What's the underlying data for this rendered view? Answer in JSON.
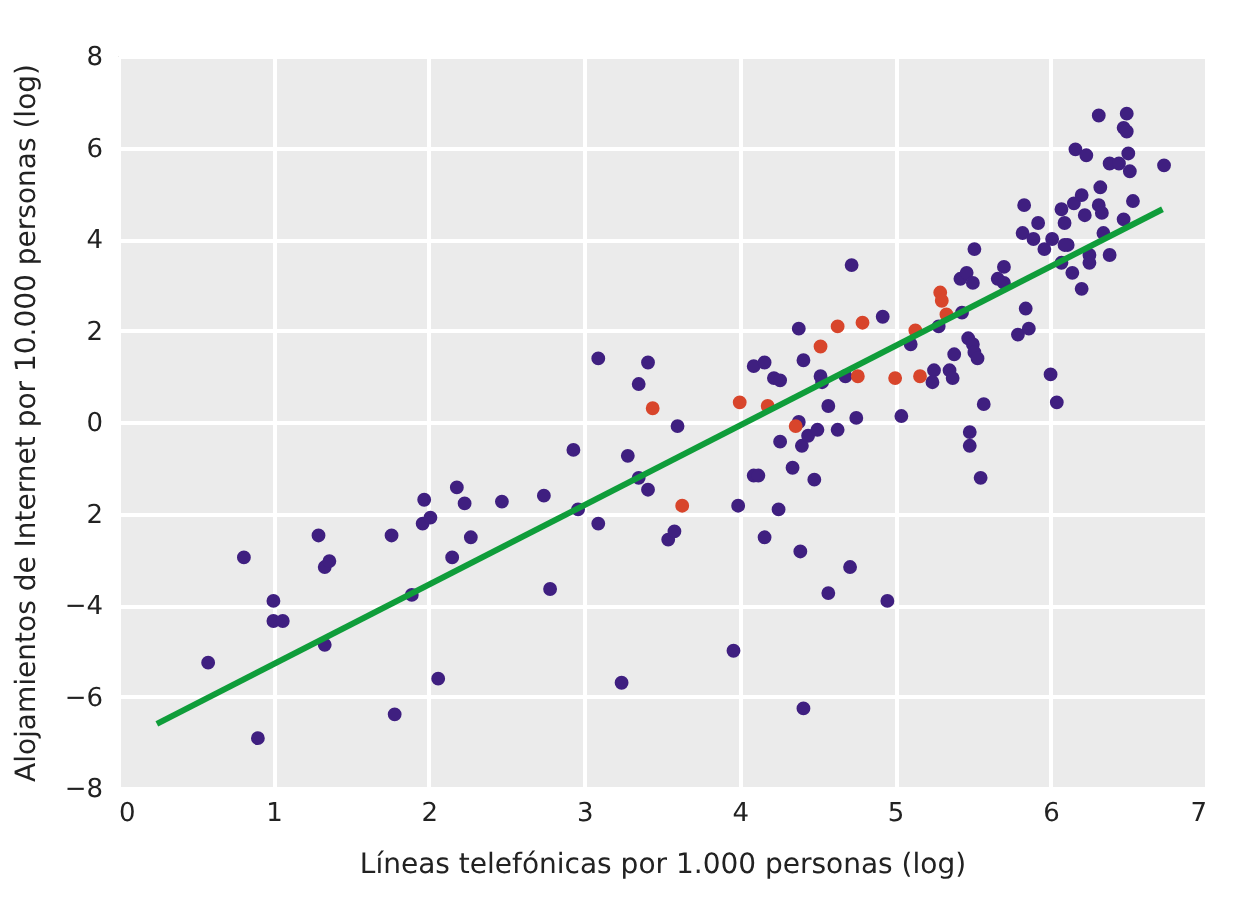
{
  "chart_data": {
    "type": "scatter",
    "xlabel": "Líneas telefónicas por 1.000 personas (log)",
    "ylabel": "Alojamientos de Internet por 10.000 personas (log)",
    "xlim": [
      0,
      7
    ],
    "ylim": [
      -8,
      8
    ],
    "xticks": [
      0,
      1,
      2,
      3,
      4,
      5,
      6,
      7
    ],
    "yticks": [
      8,
      6,
      4,
      2,
      0,
      {
        "value": -2,
        "label": "2"
      },
      -4,
      -6,
      -8
    ],
    "grid": true,
    "series": [
      {
        "color": "#3f1f80",
        "marker": "circle",
        "x": [
          0.58,
          0.81,
          0.9,
          1.0,
          1.0,
          1.06,
          1.29,
          1.33,
          1.36,
          1.33,
          1.76,
          1.78,
          1.89,
          1.96,
          1.97,
          2.01,
          2.06,
          2.15,
          2.18,
          2.23,
          2.27,
          2.47,
          2.74,
          2.78,
          2.93,
          2.96,
          3.09,
          3.09,
          3.24,
          3.28,
          3.35,
          3.41,
          3.41,
          3.35,
          3.54,
          3.58,
          3.6,
          3.96,
          3.99,
          4.09,
          4.16,
          4.22,
          4.09,
          4.12,
          4.16,
          4.25,
          4.26,
          4.34,
          4.4,
          4.44,
          4.5,
          4.63,
          4.75,
          4.38,
          4.48,
          4.39,
          4.71,
          4.57,
          4.95,
          4.41,
          4.38,
          4.53,
          4.57,
          4.68,
          4.72,
          4.41,
          4.52,
          4.26,
          4.92,
          5.1,
          5.04,
          5.28,
          5.25,
          5.24,
          5.35,
          5.37,
          5.38,
          5.43,
          5.47,
          5.5,
          5.51,
          5.53,
          5.57,
          5.48,
          5.48,
          5.55,
          5.51,
          5.42,
          5.46,
          5.5,
          5.66,
          5.7,
          5.7,
          5.79,
          5.84,
          5.86,
          6.0,
          6.04,
          5.82,
          5.89,
          5.92,
          5.96,
          6.01,
          6.07,
          6.11,
          6.14,
          6.2,
          6.25,
          6.25,
          6.34,
          6.38,
          6.31,
          6.49,
          6.47,
          6.49,
          6.16,
          6.23,
          6.38,
          6.44,
          6.5,
          6.51,
          6.73,
          5.83,
          6.07,
          6.09,
          6.15,
          6.2,
          6.22,
          6.31,
          6.32,
          6.33,
          6.53,
          6.47,
          6.09
        ],
        "values": [
          -5.26,
          -2.96,
          -6.91,
          -3.91,
          -4.35,
          -4.35,
          -2.48,
          -3.17,
          -3.04,
          -4.87,
          -2.48,
          -6.39,
          -3.78,
          -2.22,
          -1.7,
          -2.09,
          -5.61,
          -2.96,
          -1.43,
          -1.78,
          -2.52,
          -1.74,
          -1.61,
          -3.65,
          -0.61,
          -1.91,
          1.39,
          -2.22,
          -5.7,
          -0.74,
          0.83,
          1.3,
          -1.48,
          -1.22,
          -2.57,
          -2.39,
          -0.09,
          -5.0,
          -1.83,
          1.22,
          1.3,
          0.96,
          -1.17,
          -1.17,
          -2.52,
          -1.91,
          -0.43,
          -1.0,
          -0.52,
          -0.3,
          -0.17,
          -0.17,
          0.09,
          0.0,
          -1.26,
          -2.83,
          -3.17,
          -3.74,
          -3.91,
          -6.26,
          2.04,
          0.87,
          0.35,
          1.0,
          3.43,
          1.35,
          1.0,
          0.91,
          2.3,
          1.7,
          0.13,
          2.09,
          1.13,
          0.87,
          1.13,
          0.96,
          1.48,
          2.39,
          1.83,
          1.7,
          1.52,
          1.39,
          0.39,
          -0.22,
          -0.52,
          -1.22,
          3.78,
          3.13,
          3.26,
          3.04,
          3.13,
          3.39,
          3.04,
          1.91,
          2.48,
          2.04,
          1.04,
          0.43,
          4.13,
          4.0,
          4.35,
          3.78,
          4.0,
          3.48,
          3.87,
          3.26,
          2.91,
          3.65,
          3.48,
          4.13,
          3.65,
          6.7,
          6.74,
          6.43,
          6.35,
          5.96,
          5.83,
          5.65,
          5.65,
          5.87,
          5.48,
          5.61,
          4.74,
          4.65,
          4.35,
          4.78,
          4.96,
          4.52,
          4.74,
          5.13,
          4.57,
          4.83,
          4.43,
          3.87
        ]
      },
      {
        "color": "#d8452b",
        "marker": "circle",
        "x": [
          3.44,
          3.63,
          4.0,
          4.18,
          4.36,
          4.52,
          4.63,
          4.79,
          4.76,
          5.0,
          5.16,
          5.13,
          5.29,
          5.3,
          5.33
        ],
        "values": [
          0.3,
          -1.83,
          0.43,
          0.35,
          -0.09,
          1.65,
          2.09,
          2.17,
          1.0,
          0.96,
          1.0,
          2.0,
          2.83,
          2.65,
          2.35
        ]
      },
      {
        "type": "line",
        "color": "#0f9d3a",
        "x": [
          0.25,
          6.72
        ],
        "values": [
          -6.6,
          4.65
        ]
      }
    ]
  }
}
